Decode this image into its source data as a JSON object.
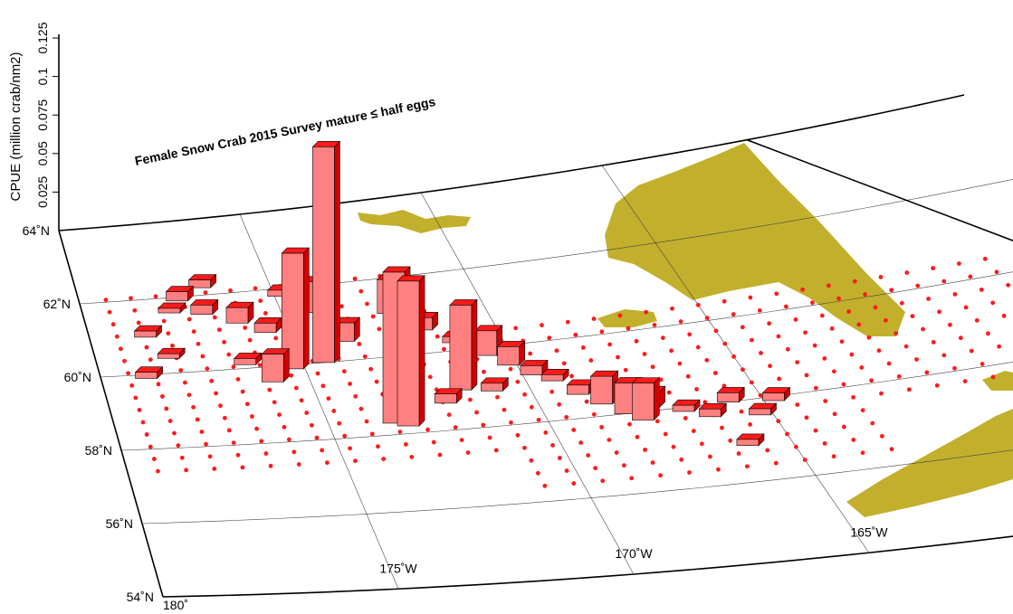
{
  "chart_data": {
    "type": "bar3d",
    "title": "Female Snow Crab 2015 Survey mature ≤ half eggs",
    "zlabel": "CPUE (million crab/nm2)",
    "zlim": [
      0,
      0.125
    ],
    "zticks": [
      0.025,
      0.05,
      0.075,
      0.1,
      0.125
    ],
    "lat_ticks": [
      {
        "value": 54,
        "label": "54˚N"
      },
      {
        "value": 56,
        "label": "56˚N"
      },
      {
        "value": 58,
        "label": "58˚N"
      },
      {
        "value": 60,
        "label": "60˚N"
      },
      {
        "value": 62,
        "label": "62˚N"
      },
      {
        "value": 64,
        "label": "64˚N"
      }
    ],
    "lon_ticks": [
      {
        "value": 180,
        "label": "180˚"
      },
      {
        "value": 175,
        "label": "175˚W"
      },
      {
        "value": 170,
        "label": "170˚W"
      },
      {
        "value": 165,
        "label": "165˚W"
      }
    ],
    "color": "#ff1a1a",
    "stations": {
      "lon": [
        174.5,
        175.3,
        173.5,
        173.2,
        171.6,
        175.9,
        177.0,
        178.6,
        178.2,
        177.5,
        176.8,
        176.2,
        175.6,
        174.2,
        173.8,
        172.4,
        171.8,
        171.2,
        170.6,
        170.2,
        169.8,
        169.4,
        172.9,
        172.1,
        170.9,
        168.6,
        168.2,
        167.9,
        167.6,
        166.9,
        166.4,
        165.8,
        165.3,
        164.8,
        166.0,
        169.0,
        176.4,
        178.9,
        177.8,
        174.9
      ],
      "lat": [
        60.0,
        59.9,
        58.3,
        58.2,
        59.0,
        59.6,
        61.5,
        61.0,
        60.4,
        61.9,
        62.2,
        61.2,
        60.9,
        61.3,
        60.5,
        61.1,
        60.6,
        60.2,
        59.8,
        59.5,
        59.2,
        59.0,
        59.4,
        58.7,
        58.9,
        58.3,
        58.0,
        57.8,
        58.1,
        57.9,
        57.7,
        58.0,
        57.6,
        57.9,
        56.9,
        58.6,
        60.1,
        59.9,
        61.6,
        61.8
      ],
      "values": [
        0.14,
        0.075,
        0.098,
        0.094,
        0.055,
        0.018,
        0.006,
        0.004,
        0.003,
        0.006,
        0.005,
        0.01,
        0.006,
        0.02,
        0.012,
        0.022,
        0.008,
        0.004,
        0.016,
        0.012,
        0.006,
        0.004,
        0.008,
        0.006,
        0.005,
        0.018,
        0.02,
        0.024,
        0.01,
        0.004,
        0.005,
        0.006,
        0.004,
        0.005,
        0.004,
        0.006,
        0.004,
        0.004,
        0.003,
        0.004
      ]
    }
  }
}
